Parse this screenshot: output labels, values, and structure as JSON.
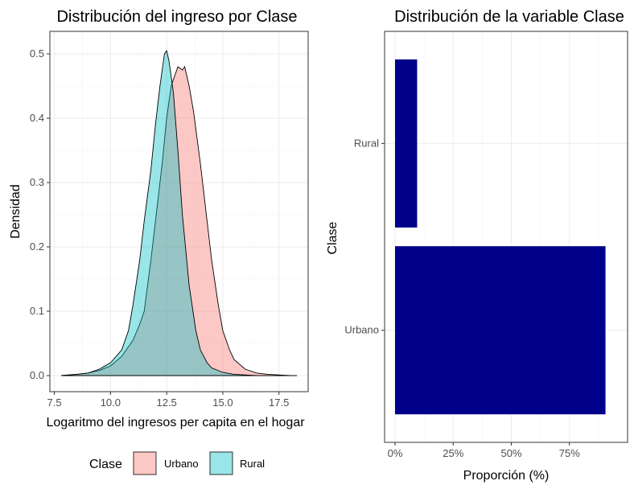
{
  "chart_data": [
    {
      "type": "area",
      "title": "Distribución del ingreso por Clase",
      "xlabel": "Logaritmo del ingresos per capita en el hogar",
      "ylabel": "Densidad",
      "xlim": [
        7.3,
        18.8
      ],
      "ylim": [
        -0.025,
        0.535
      ],
      "xticks": [
        7.5,
        10.0,
        12.5,
        15.0,
        17.5
      ],
      "xtick_labels": [
        "7.5",
        "10.0",
        "12.5",
        "15.0",
        "17.5"
      ],
      "yticks": [
        0.0,
        0.1,
        0.2,
        0.3,
        0.4,
        0.5
      ],
      "ytick_labels": [
        "0.0",
        "0.1",
        "0.2",
        "0.3",
        "0.4",
        "0.5"
      ],
      "grid": true,
      "legend_title": "Clase",
      "legend_position": "bottom",
      "series": [
        {
          "name": "Urbano",
          "color": "#F8766D",
          "x": [
            7.8,
            8.5,
            9.0,
            9.5,
            10.0,
            10.5,
            11.0,
            11.3,
            11.5,
            11.8,
            12.0,
            12.3,
            12.5,
            12.7,
            12.9,
            13.0,
            13.2,
            13.3,
            13.5,
            13.7,
            14.0,
            14.3,
            14.5,
            14.8,
            15.0,
            15.3,
            15.5,
            16.0,
            16.5,
            17.0,
            17.5,
            18.0,
            18.3
          ],
          "y": [
            0.0,
            0.002,
            0.004,
            0.008,
            0.015,
            0.03,
            0.055,
            0.08,
            0.1,
            0.18,
            0.24,
            0.33,
            0.4,
            0.45,
            0.47,
            0.48,
            0.475,
            0.48,
            0.45,
            0.41,
            0.33,
            0.24,
            0.18,
            0.11,
            0.07,
            0.04,
            0.025,
            0.01,
            0.004,
            0.002,
            0.001,
            0.0,
            0.0
          ]
        },
        {
          "name": "Rural",
          "color": "#00BFC4",
          "x": [
            7.8,
            8.5,
            9.0,
            9.5,
            10.0,
            10.5,
            10.8,
            11.0,
            11.3,
            11.5,
            11.8,
            12.0,
            12.2,
            12.4,
            12.5,
            12.6,
            12.8,
            13.0,
            13.2,
            13.5,
            13.8,
            14.0,
            14.3,
            14.5,
            15.0,
            15.5,
            16.0,
            16.5,
            17.0,
            17.5,
            18.3
          ],
          "y": [
            0.0,
            0.002,
            0.004,
            0.01,
            0.02,
            0.04,
            0.07,
            0.11,
            0.18,
            0.24,
            0.32,
            0.39,
            0.45,
            0.5,
            0.505,
            0.49,
            0.44,
            0.35,
            0.25,
            0.14,
            0.07,
            0.04,
            0.02,
            0.012,
            0.005,
            0.002,
            0.001,
            0.0,
            0.0,
            0.0,
            0.0
          ]
        }
      ]
    },
    {
      "type": "bar",
      "orientation": "horizontal",
      "title": "Distribución de la variable Clase",
      "xlabel": "Proporción (%)",
      "ylabel": "Clase",
      "categories": [
        "Urbano",
        "Rural"
      ],
      "values": [
        90.5,
        9.5
      ],
      "xlim": [
        -4.5,
        100
      ],
      "xticks": [
        0,
        25,
        50,
        75
      ],
      "xtick_labels": [
        "0%",
        "25%",
        "50%",
        "75%"
      ],
      "bar_color": "#00008B",
      "grid": true
    }
  ]
}
